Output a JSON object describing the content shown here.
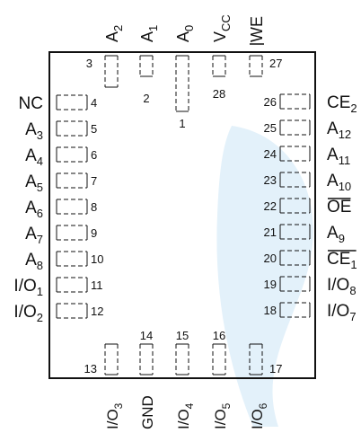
{
  "colors": {
    "line": "#111111",
    "watermark": "#e3f1fa",
    "background": "#ffffff"
  },
  "watermark": {
    "name": "stylized-leaf-logo"
  },
  "top_pins": [
    {
      "pin": "3",
      "base": "A",
      "sub": "2",
      "over": false
    },
    {
      "pin": "2",
      "base": "A",
      "sub": "1",
      "over": false
    },
    {
      "pin": "1",
      "base": "A",
      "sub": "0",
      "over": false
    },
    {
      "pin": "28",
      "base": "V",
      "sub": "CC",
      "over": false
    },
    {
      "pin": "27",
      "base": "WE",
      "sub": "",
      "over": true
    }
  ],
  "left_pins": [
    {
      "pin": "4",
      "base": "NC",
      "sub": "",
      "over": false
    },
    {
      "pin": "5",
      "base": "A",
      "sub": "3",
      "over": false
    },
    {
      "pin": "6",
      "base": "A",
      "sub": "4",
      "over": false
    },
    {
      "pin": "7",
      "base": "A",
      "sub": "5",
      "over": false
    },
    {
      "pin": "8",
      "base": "A",
      "sub": "6",
      "over": false
    },
    {
      "pin": "9",
      "base": "A",
      "sub": "7",
      "over": false
    },
    {
      "pin": "10",
      "base": "A",
      "sub": "8",
      "over": false
    },
    {
      "pin": "11",
      "base": "I/O",
      "sub": "1",
      "over": false
    },
    {
      "pin": "12",
      "base": "I/O",
      "sub": "2",
      "over": false
    }
  ],
  "right_pins": [
    {
      "pin": "26",
      "base": "CE",
      "sub": "2",
      "over": false
    },
    {
      "pin": "25",
      "base": "A",
      "sub": "12",
      "over": false
    },
    {
      "pin": "24",
      "base": "A",
      "sub": "11",
      "over": false
    },
    {
      "pin": "23",
      "base": "A",
      "sub": "10",
      "over": false
    },
    {
      "pin": "22",
      "base": "OE",
      "sub": "",
      "over": true
    },
    {
      "pin": "21",
      "base": "A",
      "sub": "9",
      "over": false
    },
    {
      "pin": "20",
      "base": "CE",
      "sub": "1",
      "over": true
    },
    {
      "pin": "19",
      "base": "I/O",
      "sub": "8",
      "over": false
    },
    {
      "pin": "18",
      "base": "I/O",
      "sub": "7",
      "over": false
    }
  ],
  "bottom_pins": [
    {
      "pin": "13",
      "base": "I/O",
      "sub": "3",
      "over": false
    },
    {
      "pin": "14",
      "base": "GND",
      "sub": "",
      "over": false
    },
    {
      "pin": "15",
      "base": "I/O",
      "sub": "4",
      "over": false
    },
    {
      "pin": "16",
      "base": "I/O",
      "sub": "5",
      "over": false
    },
    {
      "pin": "17",
      "base": "I/O",
      "sub": "6",
      "over": false
    }
  ]
}
